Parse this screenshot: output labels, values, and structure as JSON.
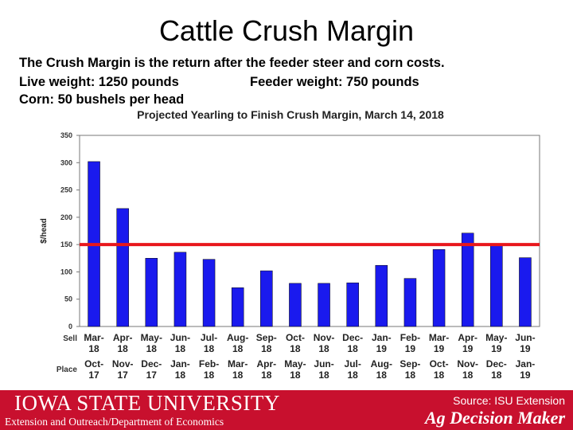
{
  "slide": {
    "title": "Cattle Crush Margin",
    "line1": "The Crush Margin is the return after the feeder steer and corn costs.",
    "line2a": "Live weight:  1250 pounds",
    "line2b": "Feeder weight:  750 pounds",
    "line3": "Corn:  50 bushels per head"
  },
  "chart_data": {
    "type": "bar",
    "title": "Projected Yearling to Finish Crush Margin, March 14, 2018",
    "ylabel": "$/head",
    "ylim": [
      0,
      350
    ],
    "yticks": [
      0,
      50,
      100,
      150,
      200,
      250,
      300,
      350
    ],
    "grid": false,
    "bar_color": "#1a1aee",
    "reference_line": {
      "value": 150,
      "color": "#e8171c"
    },
    "row_labels": [
      "Sell",
      "Place"
    ],
    "sell": [
      [
        "Mar-",
        "18"
      ],
      [
        "Apr-",
        "18"
      ],
      [
        "May-",
        "18"
      ],
      [
        "Jun-",
        "18"
      ],
      [
        "Jul-",
        "18"
      ],
      [
        "Aug-",
        "18"
      ],
      [
        "Sep-",
        "18"
      ],
      [
        "Oct-",
        "18"
      ],
      [
        "Nov-",
        "18"
      ],
      [
        "Dec-",
        "18"
      ],
      [
        "Jan-",
        "19"
      ],
      [
        "Feb-",
        "19"
      ],
      [
        "Mar-",
        "19"
      ],
      [
        "Apr-",
        "19"
      ],
      [
        "May-",
        "19"
      ],
      [
        "Jun-",
        "19"
      ]
    ],
    "place": [
      [
        "Oct-",
        "17"
      ],
      [
        "Nov-",
        "17"
      ],
      [
        "Dec-",
        "17"
      ],
      [
        "Jan-",
        "18"
      ],
      [
        "Feb-",
        "18"
      ],
      [
        "Mar-",
        "18"
      ],
      [
        "Apr-",
        "18"
      ],
      [
        "May-",
        "18"
      ],
      [
        "Jun-",
        "18"
      ],
      [
        "Jul-",
        "18"
      ],
      [
        "Aug-",
        "18"
      ],
      [
        "Sep-",
        "18"
      ],
      [
        "Oct-",
        "18"
      ],
      [
        "Nov-",
        "18"
      ],
      [
        "Dec-",
        "18"
      ],
      [
        "Jan-",
        "19"
      ]
    ],
    "values": [
      302,
      216,
      125,
      136,
      123,
      71,
      102,
      79,
      79,
      80,
      112,
      88,
      141,
      171,
      152,
      126
    ]
  },
  "footer": {
    "university": "IOWA STATE UNIVERSITY",
    "department": "Extension and Outreach/Department of Economics",
    "source": "Source: ISU Extension",
    "brand": "Ag Decision Maker"
  }
}
